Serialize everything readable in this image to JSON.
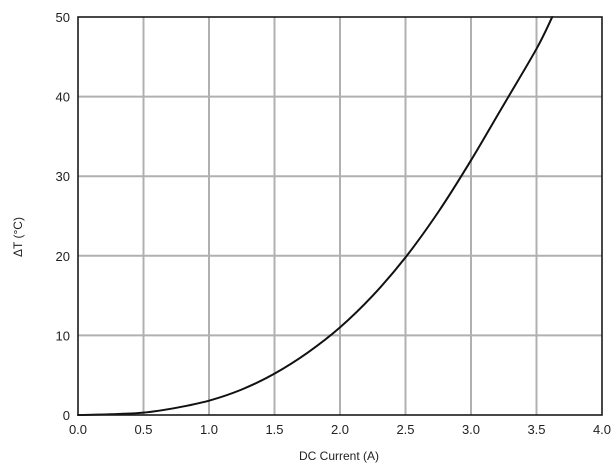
{
  "chart_data": {
    "type": "line",
    "title": "",
    "xlabel": "DC Current (A)",
    "ylabel": "ΔT (°C)",
    "xlim": [
      0.0,
      4.0
    ],
    "ylim": [
      0,
      50
    ],
    "x_ticks": [
      "0.0",
      "0.5",
      "1.0",
      "1.5",
      "2.0",
      "2.5",
      "3.0",
      "3.5",
      "4.0"
    ],
    "y_ticks": [
      "0",
      "10",
      "20",
      "30",
      "40",
      "50"
    ],
    "grid": true,
    "legend": "none",
    "series": [
      {
        "x": [
          0.0,
          0.25,
          0.5,
          0.75,
          1.0,
          1.25,
          1.5,
          1.75,
          2.0,
          2.25,
          2.5,
          2.75,
          3.0,
          3.25,
          3.5,
          3.62
        ],
        "y": [
          0.0,
          0.1,
          0.3,
          0.9,
          1.8,
          3.2,
          5.2,
          7.8,
          11.0,
          15.0,
          19.8,
          25.5,
          32.0,
          39.0,
          46.0,
          50.0
        ]
      }
    ],
    "colors": {
      "line": "#111111",
      "grid": "#b0b0b0",
      "frame": "#1a1a1a"
    }
  }
}
